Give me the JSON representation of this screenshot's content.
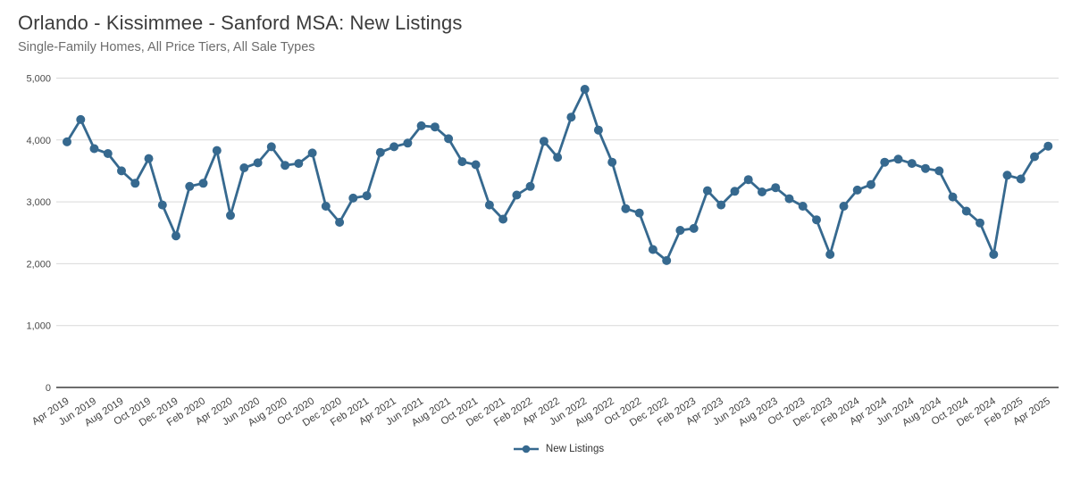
{
  "header": {
    "title": "Orlando - Kissimmee - Sanford MSA: New Listings",
    "subtitle": "Single-Family Homes, All Price Tiers, All Sale Types"
  },
  "chart_data": {
    "type": "line",
    "title": "Orlando - Kissimmee - Sanford MSA: New Listings",
    "subtitle": "Single-Family Homes, All Price Tiers, All Sale Types",
    "xlabel": "",
    "ylabel": "",
    "ylim": [
      0,
      5000
    ],
    "y_ticks": [
      0,
      1000,
      2000,
      3000,
      4000,
      5000
    ],
    "y_tick_labels": [
      "0",
      "1,000",
      "2,000",
      "3,000",
      "4,000",
      "5,000"
    ],
    "grid": true,
    "legend_position": "bottom",
    "x_tick_every": 2,
    "x": [
      "Apr 2019",
      "May 2019",
      "Jun 2019",
      "Jul 2019",
      "Aug 2019",
      "Sep 2019",
      "Oct 2019",
      "Nov 2019",
      "Dec 2019",
      "Jan 2020",
      "Feb 2020",
      "Mar 2020",
      "Apr 2020",
      "May 2020",
      "Jun 2020",
      "Jul 2020",
      "Aug 2020",
      "Sep 2020",
      "Oct 2020",
      "Nov 2020",
      "Dec 2020",
      "Jan 2021",
      "Feb 2021",
      "Mar 2021",
      "Apr 2021",
      "May 2021",
      "Jun 2021",
      "Jul 2021",
      "Aug 2021",
      "Sep 2021",
      "Oct 2021",
      "Nov 2021",
      "Dec 2021",
      "Jan 2022",
      "Feb 2022",
      "Mar 2022",
      "Apr 2022",
      "May 2022",
      "Jun 2022",
      "Jul 2022",
      "Aug 2022",
      "Sep 2022",
      "Oct 2022",
      "Nov 2022",
      "Dec 2022",
      "Jan 2023",
      "Feb 2023",
      "Mar 2023",
      "Apr 2023",
      "May 2023",
      "Jun 2023",
      "Jul 2023",
      "Aug 2023",
      "Sep 2023",
      "Oct 2023",
      "Nov 2023",
      "Dec 2023",
      "Jan 2024",
      "Feb 2024",
      "Mar 2024",
      "Apr 2024",
      "May 2024",
      "Jun 2024",
      "Jul 2024",
      "Aug 2024",
      "Sep 2024",
      "Oct 2024",
      "Nov 2024",
      "Dec 2024",
      "Jan 2025",
      "Feb 2025",
      "Mar 2025",
      "Apr 2025"
    ],
    "series": [
      {
        "name": "New Listings",
        "color": "#36698f",
        "values": [
          3970,
          4330,
          3860,
          3780,
          3500,
          3300,
          3700,
          2950,
          2450,
          3250,
          3300,
          3830,
          2780,
          3550,
          3630,
          3890,
          3590,
          3620,
          3790,
          2930,
          2670,
          3060,
          3100,
          3800,
          3890,
          3950,
          4230,
          4210,
          4020,
          3650,
          3600,
          2950,
          2720,
          3110,
          3250,
          3980,
          3720,
          4370,
          4820,
          4160,
          3640,
          2890,
          2820,
          2230,
          2050,
          2540,
          2570,
          3180,
          2950,
          3170,
          3360,
          3160,
          3230,
          3050,
          2930,
          2710,
          2150,
          2930,
          3190,
          3280,
          3640,
          3690,
          3620,
          3540,
          3500,
          3080,
          2850,
          2660,
          2150,
          3430,
          3370,
          3730,
          3900
        ]
      }
    ]
  },
  "legend": {
    "items": [
      {
        "label": "New Listings",
        "color": "#36698f"
      }
    ]
  },
  "style": {
    "accent": "#36698f",
    "grid_color": "#d9d9d9",
    "axis_color": "#3d3d3d",
    "title_color": "#3c3c3c",
    "subtitle_color": "#6d6d6d",
    "tick_text_color": "#4a4a4a"
  }
}
